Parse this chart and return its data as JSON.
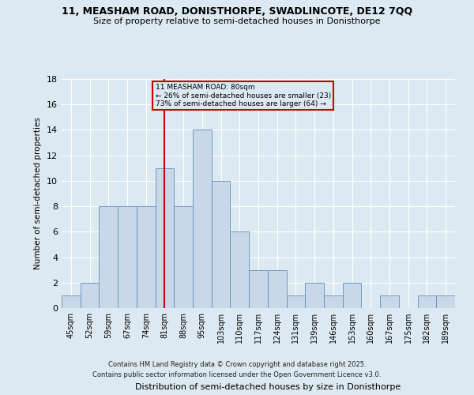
{
  "title1": "11, MEASHAM ROAD, DONISTHORPE, SWADLINCOTE, DE12 7QQ",
  "title2": "Size of property relative to semi-detached houses in Donisthorpe",
  "xlabel": "Distribution of semi-detached houses by size in Donisthorpe",
  "ylabel": "Number of semi-detached properties",
  "categories": [
    "45sqm",
    "52sqm",
    "59sqm",
    "67sqm",
    "74sqm",
    "81sqm",
    "88sqm",
    "95sqm",
    "103sqm",
    "110sqm",
    "117sqm",
    "124sqm",
    "131sqm",
    "139sqm",
    "146sqm",
    "153sqm",
    "160sqm",
    "167sqm",
    "175sqm",
    "182sqm",
    "189sqm"
  ],
  "values": [
    1,
    2,
    8,
    8,
    8,
    11,
    8,
    14,
    10,
    6,
    3,
    3,
    1,
    2,
    1,
    2,
    0,
    1,
    0,
    1,
    1
  ],
  "bar_color": "#c8d8e8",
  "bar_edge_color": "#6090b8",
  "subject_bar_index": 5,
  "subject_label": "11 MEASHAM ROAD: 80sqm",
  "subject_line_color": "#cc0000",
  "annotation_smaller": "← 26% of semi-detached houses are smaller (23)",
  "annotation_larger": "73% of semi-detached houses are larger (64) →",
  "annotation_box_color": "#cc0000",
  "ylim": [
    0,
    18
  ],
  "yticks": [
    0,
    2,
    4,
    6,
    8,
    10,
    12,
    14,
    16,
    18
  ],
  "bg_color": "#dce9f2",
  "footer": "Contains HM Land Registry data © Crown copyright and database right 2025.\nContains public sector information licensed under the Open Government Licence v3.0."
}
